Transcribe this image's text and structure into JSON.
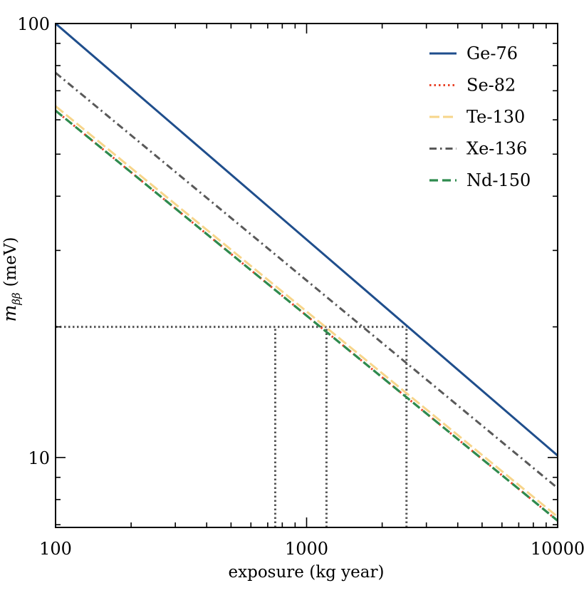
{
  "chart_data": {
    "type": "line",
    "title": "",
    "xlabel": "exposure (kg year)",
    "ylabel": "m_ββ (meV)",
    "ylabel_main": "m",
    "ylabel_sub": "ββ",
    "ylabel_unit": "(meV)",
    "xscale": "log",
    "yscale": "log",
    "xlim": [
      100,
      10000
    ],
    "ylim": [
      6.9,
      100
    ],
    "grid": false,
    "legend_position": "top-right",
    "x_tick_labels": [
      {
        "value": 100,
        "label": "100"
      },
      {
        "value": 1000,
        "label": "1000"
      },
      {
        "value": 10000,
        "label": "10000"
      }
    ],
    "y_tick_labels": [
      {
        "value": 10,
        "label": "10"
      },
      {
        "value": 100,
        "label": "100"
      }
    ],
    "series": [
      {
        "name": "Ge-76",
        "style": "solid",
        "color": "#1f4e8c",
        "x": [
          100,
          10000
        ],
        "y": [
          100,
          10.1
        ]
      },
      {
        "name": "Se-82",
        "style": "dotted",
        "color": "#e8442a",
        "x": [
          100,
          10000
        ],
        "y": [
          63,
          7.15
        ]
      },
      {
        "name": "Te-130",
        "style": "dashdash",
        "color": "#f7d58a",
        "x": [
          100,
          10000
        ],
        "y": [
          64.5,
          7.3
        ]
      },
      {
        "name": "Xe-136",
        "style": "dashdot",
        "color": "#595959",
        "x": [
          100,
          10000
        ],
        "y": [
          77,
          8.5
        ]
      },
      {
        "name": "Nd-150",
        "style": "dashed",
        "color": "#2e8b4e",
        "x": [
          100,
          10000
        ],
        "y": [
          63,
          7.15
        ]
      }
    ],
    "reference_lines": {
      "color": "#555555",
      "horizontal": {
        "y": 20,
        "x_from": 100,
        "x_to": 2500
      },
      "vertical": [
        {
          "x": 750,
          "y_to": 20
        },
        {
          "x": 1200,
          "y_to": 20
        },
        {
          "x": 2500,
          "y_to": 20
        }
      ]
    }
  }
}
